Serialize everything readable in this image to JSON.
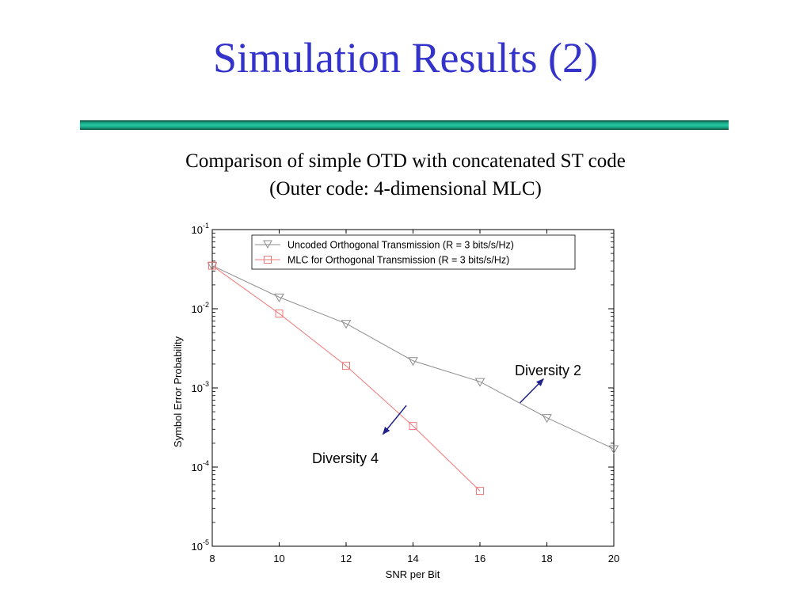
{
  "slide": {
    "title": "Simulation Results (2)",
    "subtitle_line1": "Comparison of simple OTD with concatenated ST code",
    "subtitle_line2": "(Outer code: 4-dimensional MLC)"
  },
  "colors": {
    "title": "#3333cc",
    "uncoded_series": "#8c8c8c",
    "mlc_series": "#f07878",
    "annotation_arrow": "#22228c"
  },
  "chart_data": {
    "type": "line",
    "xlabel": "SNR per Bit",
    "ylabel": "Symbol Error Probability",
    "xlim": [
      8,
      20
    ],
    "ylim": [
      1e-05,
      0.1
    ],
    "yscale": "log",
    "xticks": [
      8,
      10,
      12,
      14,
      16,
      18,
      20
    ],
    "yticks": [
      {
        "value": 0.1,
        "base": "10",
        "exp": "-1"
      },
      {
        "value": 0.01,
        "base": "10",
        "exp": "-2"
      },
      {
        "value": 0.001,
        "base": "10",
        "exp": "-3"
      },
      {
        "value": 0.0001,
        "base": "10",
        "exp": "-4"
      },
      {
        "value": 1e-05,
        "base": "10",
        "exp": "-5"
      }
    ],
    "legend_position": "top-right",
    "grid": false,
    "series": [
      {
        "name": "Uncoded Orthogonal Transmission (R = 3 bits/s/Hz)",
        "marker": "triangle-down",
        "x": [
          8,
          10,
          12,
          14,
          16,
          18,
          20
        ],
        "y": [
          0.035,
          0.014,
          0.0065,
          0.0022,
          0.0012,
          0.00042,
          0.00017
        ]
      },
      {
        "name": "MLC for Orthogonal Transmission (R = 3 bits/s/Hz)",
        "marker": "square",
        "x": [
          8,
          10,
          12,
          14,
          16
        ],
        "y": [
          0.035,
          0.0087,
          0.0019,
          0.00033,
          5e-05
        ]
      }
    ],
    "annotations": [
      {
        "text": "Diversity 2",
        "arrow_from": [
          17.2,
          0.00065
        ],
        "arrow_to": [
          17.9,
          0.0013
        ]
      },
      {
        "text": "Diversity 4",
        "arrow_from": [
          13.8,
          0.0006
        ],
        "arrow_to": [
          13.1,
          0.00026
        ]
      }
    ]
  }
}
